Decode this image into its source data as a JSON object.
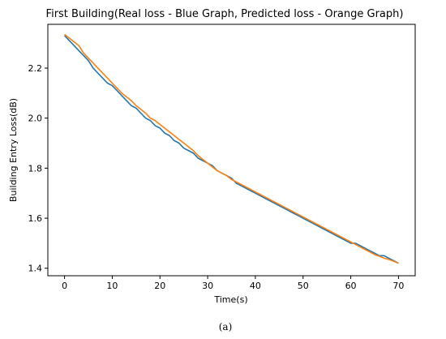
{
  "caption": "(a)",
  "colors": {
    "real": "#1f77b4",
    "predicted": "#ff7f0e"
  },
  "chart_data": {
    "type": "line",
    "title": "First Building(Real loss - Blue Graph, Predicted loss - Orange Graph)",
    "xlabel": "Time(s)",
    "ylabel": "Building Entry Loss(dB)",
    "xlim": [
      -3.5,
      73.5
    ],
    "ylim": [
      1.37,
      2.375
    ],
    "xticks": [
      0,
      10,
      20,
      30,
      40,
      50,
      60,
      70
    ],
    "yticks": [
      1.4,
      1.6,
      1.8,
      2.0,
      2.2
    ],
    "xtick_labels": [
      "0",
      "10",
      "20",
      "30",
      "40",
      "50",
      "60",
      "70"
    ],
    "ytick_labels": [
      "1.4",
      "1.6",
      "1.8",
      "2.0",
      "2.2"
    ],
    "legend": false,
    "grid": false,
    "series": [
      {
        "color": "#1f77b4",
        "x": [
          0,
          1,
          2,
          3,
          4,
          5,
          6,
          7,
          8,
          9,
          10,
          11,
          12,
          13,
          14,
          15,
          16,
          17,
          18,
          19,
          20,
          21,
          22,
          23,
          24,
          25,
          26,
          27,
          28,
          29,
          30,
          31,
          32,
          33,
          34,
          35,
          36,
          37,
          38,
          39,
          40,
          41,
          42,
          43,
          44,
          45,
          46,
          47,
          48,
          49,
          50,
          51,
          52,
          53,
          54,
          55,
          56,
          57,
          58,
          59,
          60,
          61,
          62,
          63,
          64,
          65,
          66,
          67,
          68,
          69,
          70
        ],
        "values": [
          2.33,
          2.31,
          2.29,
          2.27,
          2.25,
          2.23,
          2.2,
          2.18,
          2.16,
          2.14,
          2.13,
          2.11,
          2.09,
          2.07,
          2.05,
          2.04,
          2.02,
          2.0,
          1.99,
          1.97,
          1.96,
          1.94,
          1.93,
          1.91,
          1.9,
          1.88,
          1.87,
          1.86,
          1.84,
          1.83,
          1.82,
          1.81,
          1.79,
          1.78,
          1.77,
          1.76,
          1.74,
          1.73,
          1.72,
          1.71,
          1.7,
          1.69,
          1.68,
          1.67,
          1.66,
          1.65,
          1.64,
          1.63,
          1.62,
          1.61,
          1.6,
          1.59,
          1.58,
          1.57,
          1.56,
          1.55,
          1.54,
          1.53,
          1.52,
          1.51,
          1.5,
          1.5,
          1.49,
          1.48,
          1.47,
          1.46,
          1.45,
          1.45,
          1.44,
          1.43,
          1.42
        ]
      },
      {
        "color": "#ff7f0e",
        "x": [
          0,
          1,
          2,
          3,
          4,
          5,
          6,
          7,
          8,
          9,
          10,
          11,
          12,
          13,
          14,
          15,
          16,
          17,
          18,
          19,
          20,
          21,
          22,
          23,
          24,
          25,
          26,
          27,
          28,
          29,
          30,
          31,
          32,
          33,
          34,
          35,
          36,
          37,
          38,
          39,
          40,
          41,
          42,
          43,
          44,
          45,
          46,
          47,
          48,
          49,
          50,
          51,
          52,
          53,
          54,
          55,
          56,
          57,
          58,
          59,
          60,
          61,
          62,
          63,
          64,
          65,
          66,
          67,
          68,
          69,
          70
        ],
        "values": [
          2.335,
          2.32,
          2.305,
          2.29,
          2.26,
          2.24,
          2.22,
          2.2,
          2.18,
          2.16,
          2.14,
          2.12,
          2.1,
          2.085,
          2.07,
          2.05,
          2.035,
          2.02,
          2.0,
          1.99,
          1.975,
          1.96,
          1.945,
          1.93,
          1.915,
          1.9,
          1.885,
          1.87,
          1.85,
          1.835,
          1.82,
          1.805,
          1.79,
          1.78,
          1.77,
          1.755,
          1.745,
          1.735,
          1.725,
          1.715,
          1.705,
          1.695,
          1.685,
          1.675,
          1.665,
          1.655,
          1.645,
          1.635,
          1.625,
          1.615,
          1.605,
          1.595,
          1.585,
          1.575,
          1.565,
          1.555,
          1.545,
          1.535,
          1.525,
          1.515,
          1.505,
          1.495,
          1.485,
          1.475,
          1.465,
          1.455,
          1.448,
          1.44,
          1.435,
          1.428,
          1.42
        ]
      }
    ]
  }
}
